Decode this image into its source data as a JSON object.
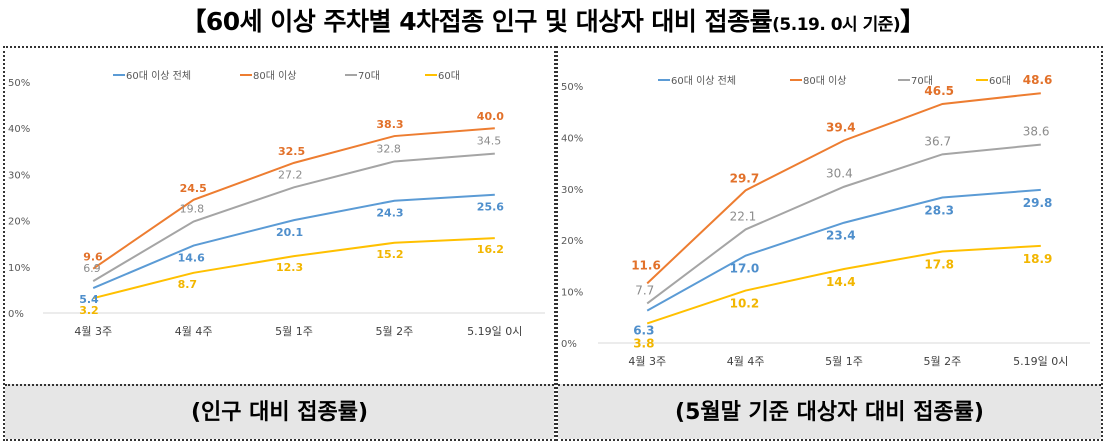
{
  "title": {
    "main": "【60세 이상 주차별 4차접종 인구 및 대상자 대비 접종률",
    "suffix": "(5.19. 0시 기준)",
    "close": "】"
  },
  "colors": {
    "60대 이상 전체": "#5b9bd5",
    "80대 이상": "#ed7d31",
    "70대": "#a5a5a5",
    "60대": "#ffc000"
  },
  "chart_data": [
    {
      "type": "line",
      "title": "",
      "caption": "(인구 대비 접종률)",
      "categories": [
        "4월 3주",
        "4월 4주",
        "5월 1주",
        "5월 2주",
        "5.19일 0시"
      ],
      "ylim": [
        0,
        50
      ],
      "yticks": [
        "0%",
        "10%",
        "20%",
        "30%",
        "40%",
        "50%"
      ],
      "legend_position": "top",
      "series": [
        {
          "name": "60대 이상 전체",
          "values": [
            5.4,
            14.6,
            20.1,
            24.3,
            25.6
          ],
          "labels": [
            "5.4",
            "14.6",
            "20.1",
            "24.3",
            "25.6"
          ]
        },
        {
          "name": "80대 이상",
          "values": [
            9.6,
            24.5,
            32.5,
            38.3,
            40.0
          ],
          "labels": [
            "9.6",
            "24.5",
            "32.5",
            "38.3",
            "40.0"
          ]
        },
        {
          "name": "70대",
          "values": [
            6.9,
            19.8,
            27.2,
            32.8,
            34.5
          ],
          "labels": [
            "6.9",
            "19.8",
            "27.2",
            "32.8",
            "34.5"
          ]
        },
        {
          "name": "60대",
          "values": [
            3.2,
            8.7,
            12.3,
            15.2,
            16.2
          ],
          "labels": [
            "3.2",
            "8.7",
            "12.3",
            "15.2",
            "16.2"
          ]
        }
      ]
    },
    {
      "type": "line",
      "title": "",
      "caption": "(5월말 기준 대상자 대비 접종률)",
      "categories": [
        "4월 3주",
        "4월 4주",
        "5월 1주",
        "5월 2주",
        "5.19일 0시"
      ],
      "ylim": [
        0,
        50
      ],
      "yticks": [
        "0%",
        "10%",
        "20%",
        "30%",
        "40%",
        "50%"
      ],
      "legend_position": "top",
      "series": [
        {
          "name": "60대 이상 전체",
          "values": [
            6.3,
            17.0,
            23.4,
            28.3,
            29.8
          ],
          "labels": [
            "6.3",
            "17.0",
            "23.4",
            "28.3",
            "29.8"
          ]
        },
        {
          "name": "80대 이상",
          "values": [
            11.6,
            29.7,
            39.4,
            46.5,
            48.6
          ],
          "labels": [
            "11.6",
            "29.7",
            "39.4",
            "46.5",
            "48.6"
          ]
        },
        {
          "name": "70대",
          "values": [
            7.7,
            22.1,
            30.4,
            36.7,
            38.6
          ],
          "labels": [
            "7.7",
            "22.1",
            "30.4",
            "36.7",
            "38.6"
          ]
        },
        {
          "name": "60대",
          "values": [
            3.8,
            10.2,
            14.4,
            17.8,
            18.9
          ],
          "labels": [
            "3.8",
            "10.2",
            "14.4",
            "17.8",
            "18.9"
          ]
        }
      ]
    }
  ]
}
